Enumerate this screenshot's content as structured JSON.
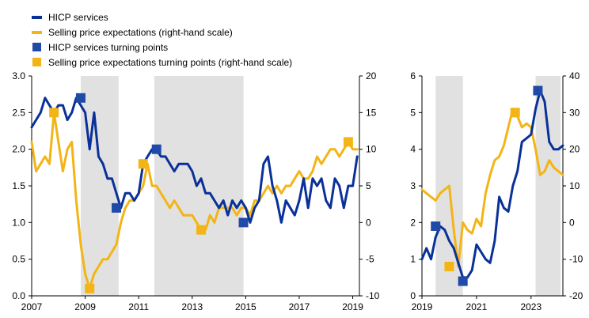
{
  "colors": {
    "services": "#0a3199",
    "expectations": "#f3b516",
    "services_marker": "#1f4aa8",
    "expectations_marker": "#f3b516",
    "shade": "#e1e1e1"
  },
  "chart_data": [
    {
      "type": "line",
      "title": "",
      "xlabel": "",
      "ylabel": "",
      "x_axis": {
        "type": "date",
        "min": "2007-01",
        "max": "2019-04",
        "tick_labels": [
          "2007",
          "2009",
          "2011",
          "2013",
          "2015",
          "2017",
          "2019"
        ]
      },
      "y_left": {
        "min": 0.0,
        "max": 3.0,
        "step": 0.5,
        "tick_labels": [
          "0.0",
          "0.5",
          "1.0",
          "1.5",
          "2.0",
          "2.5",
          "3.0"
        ]
      },
      "y_right": {
        "min": -10,
        "max": 20,
        "step": 5,
        "tick_labels": [
          "-10",
          "-5",
          "0",
          "5",
          "10",
          "15",
          "20"
        ]
      },
      "shaded_periods": [
        [
          "2008-11",
          "2010-04"
        ],
        [
          "2011-08",
          "2014-12"
        ]
      ],
      "series": [
        {
          "name": "HICP services",
          "axis": "left",
          "x": [
            "2007-01",
            "2007-03",
            "2007-05",
            "2007-07",
            "2007-09",
            "2007-11",
            "2008-01",
            "2008-03",
            "2008-05",
            "2008-07",
            "2008-09",
            "2008-11",
            "2009-01",
            "2009-03",
            "2009-05",
            "2009-07",
            "2009-09",
            "2009-11",
            "2010-01",
            "2010-03",
            "2010-05",
            "2010-07",
            "2010-09",
            "2010-11",
            "2011-01",
            "2011-03",
            "2011-05",
            "2011-07",
            "2011-09",
            "2011-11",
            "2012-01",
            "2012-03",
            "2012-05",
            "2012-07",
            "2012-09",
            "2012-11",
            "2013-01",
            "2013-03",
            "2013-05",
            "2013-07",
            "2013-09",
            "2013-11",
            "2014-01",
            "2014-03",
            "2014-05",
            "2014-07",
            "2014-09",
            "2014-11",
            "2015-01",
            "2015-03",
            "2015-05",
            "2015-07",
            "2015-09",
            "2015-11",
            "2016-01",
            "2016-03",
            "2016-05",
            "2016-07",
            "2016-09",
            "2016-11",
            "2017-01",
            "2017-03",
            "2017-05",
            "2017-07",
            "2017-09",
            "2017-11",
            "2018-01",
            "2018-03",
            "2018-05",
            "2018-07",
            "2018-09",
            "2018-11",
            "2019-01",
            "2019-03"
          ],
          "values": [
            2.3,
            2.4,
            2.5,
            2.7,
            2.6,
            2.5,
            2.6,
            2.6,
            2.4,
            2.5,
            2.7,
            2.6,
            2.5,
            2.0,
            2.5,
            1.9,
            1.8,
            1.6,
            1.6,
            1.4,
            1.2,
            1.4,
            1.4,
            1.3,
            1.4,
            1.8,
            1.9,
            2.0,
            2.0,
            1.9,
            1.9,
            1.8,
            1.7,
            1.8,
            1.8,
            1.8,
            1.7,
            1.5,
            1.6,
            1.4,
            1.4,
            1.3,
            1.2,
            1.3,
            1.1,
            1.3,
            1.2,
            1.3,
            1.2,
            1.0,
            1.2,
            1.3,
            1.8,
            1.9,
            1.5,
            1.3,
            1.0,
            1.3,
            1.2,
            1.1,
            1.3,
            1.6,
            1.2,
            1.6,
            1.5,
            1.6,
            1.3,
            1.2,
            1.6,
            1.5,
            1.2,
            1.5,
            1.5,
            1.9
          ]
        },
        {
          "name": "Selling price expectations (right-hand scale)",
          "axis": "right",
          "x": [
            "2007-01",
            "2007-03",
            "2007-05",
            "2007-07",
            "2007-09",
            "2007-11",
            "2008-01",
            "2008-03",
            "2008-05",
            "2008-07",
            "2008-09",
            "2008-11",
            "2009-01",
            "2009-03",
            "2009-05",
            "2009-07",
            "2009-09",
            "2009-11",
            "2010-01",
            "2010-03",
            "2010-05",
            "2010-07",
            "2010-09",
            "2010-11",
            "2011-01",
            "2011-03",
            "2011-05",
            "2011-07",
            "2011-09",
            "2011-11",
            "2012-01",
            "2012-03",
            "2012-05",
            "2012-07",
            "2012-09",
            "2012-11",
            "2013-01",
            "2013-03",
            "2013-05",
            "2013-07",
            "2013-09",
            "2013-11",
            "2014-01",
            "2014-03",
            "2014-05",
            "2014-07",
            "2014-09",
            "2014-11",
            "2015-01",
            "2015-03",
            "2015-05",
            "2015-07",
            "2015-09",
            "2015-11",
            "2016-01",
            "2016-03",
            "2016-05",
            "2016-07",
            "2016-09",
            "2016-11",
            "2017-01",
            "2017-03",
            "2017-05",
            "2017-07",
            "2017-09",
            "2017-11",
            "2018-01",
            "2018-03",
            "2018-05",
            "2018-07",
            "2018-09",
            "2018-11",
            "2019-01",
            "2019-03"
          ],
          "values": [
            11,
            7,
            8,
            9,
            8,
            15,
            11,
            7,
            10,
            11,
            3,
            -3,
            -7,
            -9,
            -7,
            -6,
            -5,
            -5,
            -4,
            -3,
            0,
            2,
            3,
            3,
            4,
            5,
            8,
            5,
            5,
            4,
            3,
            2,
            3,
            2,
            1,
            1,
            1,
            0,
            -1,
            -1,
            1,
            0,
            2,
            2,
            2,
            2,
            1,
            2,
            2,
            1,
            3,
            3,
            4,
            5,
            4,
            5,
            4,
            5,
            5,
            6,
            7,
            6,
            6,
            7,
            9,
            8,
            9,
            10,
            10,
            9,
            10,
            11,
            10,
            10
          ]
        },
        {
          "name": "HICP services turning points",
          "axis": "left",
          "marker": "square",
          "x": [
            "2008-11",
            "2010-03",
            "2011-09",
            "2014-12"
          ],
          "values": [
            2.7,
            1.2,
            2.0,
            1.0
          ]
        },
        {
          "name": "Selling price expectations turning points (right-hand scale)",
          "axis": "right",
          "marker": "square",
          "x": [
            "2007-11",
            "2009-03",
            "2011-03",
            "2013-05",
            "2018-11"
          ],
          "values": [
            15,
            -9,
            8,
            -1,
            11
          ]
        }
      ]
    },
    {
      "type": "line",
      "title": "",
      "xlabel": "",
      "ylabel": "",
      "x_axis": {
        "type": "date",
        "min": "2019-01",
        "max": "2024-03",
        "tick_labels": [
          "2019",
          "2021",
          "2023"
        ]
      },
      "y_left": {
        "min": 0,
        "max": 6,
        "step": 1,
        "tick_labels": [
          "0",
          "1",
          "2",
          "3",
          "4",
          "5",
          "6"
        ]
      },
      "y_right": {
        "min": -20,
        "max": 40,
        "step": 10,
        "tick_labels": [
          "-20",
          "-10",
          "0",
          "10",
          "20",
          "30",
          "40"
        ]
      },
      "shaded_periods": [
        [
          "2019-07",
          "2020-07"
        ],
        [
          "2023-03",
          "2024-02"
        ]
      ],
      "series": [
        {
          "name": "HICP services",
          "axis": "left",
          "x": [
            "2019-01",
            "2019-03",
            "2019-05",
            "2019-07",
            "2019-09",
            "2019-11",
            "2020-01",
            "2020-03",
            "2020-05",
            "2020-07",
            "2020-09",
            "2020-11",
            "2021-01",
            "2021-03",
            "2021-05",
            "2021-07",
            "2021-09",
            "2021-11",
            "2022-01",
            "2022-03",
            "2022-05",
            "2022-07",
            "2022-09",
            "2022-11",
            "2023-01",
            "2023-03",
            "2023-05",
            "2023-07",
            "2023-09",
            "2023-11",
            "2024-01",
            "2024-03"
          ],
          "values": [
            1.0,
            1.3,
            1.0,
            1.6,
            1.9,
            1.8,
            1.5,
            1.3,
            0.9,
            0.5,
            0.5,
            0.7,
            1.4,
            1.2,
            1.0,
            0.9,
            1.5,
            2.7,
            2.4,
            2.3,
            3.0,
            3.4,
            4.2,
            4.3,
            4.4,
            5.1,
            5.6,
            5.3,
            4.2,
            4.0,
            4.0,
            4.1
          ]
        },
        {
          "name": "Selling price expectations (right-hand scale)",
          "axis": "right",
          "x": [
            "2019-01",
            "2019-03",
            "2019-05",
            "2019-07",
            "2019-09",
            "2019-11",
            "2020-01",
            "2020-03",
            "2020-05",
            "2020-07",
            "2020-09",
            "2020-11",
            "2021-01",
            "2021-03",
            "2021-05",
            "2021-07",
            "2021-09",
            "2021-11",
            "2022-01",
            "2022-03",
            "2022-05",
            "2022-07",
            "2022-09",
            "2022-11",
            "2023-01",
            "2023-03",
            "2023-05",
            "2023-07",
            "2023-09",
            "2023-11",
            "2024-01",
            "2024-03"
          ],
          "values": [
            9,
            8,
            7,
            6,
            8,
            9,
            10,
            -2,
            -12,
            0,
            -2,
            -3,
            1,
            -1,
            8,
            13,
            17,
            18,
            21,
            26,
            31,
            29,
            26,
            27,
            26,
            20,
            13,
            14,
            17,
            15,
            14,
            13
          ]
        },
        {
          "name": "HICP services turning points",
          "axis": "left",
          "marker": "square",
          "x": [
            "2019-07",
            "2020-07",
            "2023-04"
          ],
          "values": [
            1.9,
            0.4,
            5.6
          ]
        },
        {
          "name": "Selling price expectations turning points (right-hand scale)",
          "axis": "right",
          "marker": "square",
          "x": [
            "2020-01",
            "2022-06"
          ],
          "values": [
            -12,
            30
          ]
        }
      ]
    }
  ]
}
